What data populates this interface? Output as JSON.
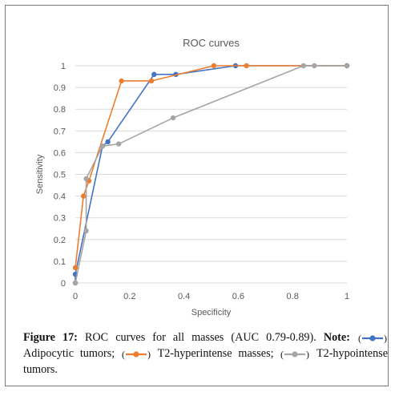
{
  "chart_data": {
    "type": "line",
    "title": "ROC curves",
    "xlabel": "Specificity",
    "ylabel": "Sensitivity",
    "xlim": [
      0,
      1
    ],
    "ylim": [
      0,
      1
    ],
    "x_ticks": [
      "0",
      "0.2",
      "0.4",
      "0.6",
      "0.8",
      "1"
    ],
    "y_ticks": [
      "0",
      "0.1",
      "0.2",
      "0.3",
      "0.4",
      "0.5",
      "0.6",
      "0.7",
      "0.8",
      "0.9",
      "1"
    ],
    "grid": "horizontal",
    "series": [
      {
        "color": "#4472c4",
        "points": [
          [
            0,
            0
          ],
          [
            0,
            0.04
          ],
          [
            0.1,
            0.63
          ],
          [
            0.12,
            0.65
          ],
          [
            0.29,
            0.96
          ],
          [
            0.37,
            0.96
          ],
          [
            0.59,
            1
          ],
          [
            1,
            1
          ]
        ]
      },
      {
        "color": "#ed7d31",
        "points": [
          [
            0,
            0.07
          ],
          [
            0.03,
            0.4
          ],
          [
            0.05,
            0.47
          ],
          [
            0.17,
            0.93
          ],
          [
            0.28,
            0.93
          ],
          [
            0.51,
            1
          ],
          [
            0.63,
            1
          ],
          [
            1,
            1
          ]
        ]
      },
      {
        "color": "#a5a5a5",
        "points": [
          [
            0,
            0
          ],
          [
            0.04,
            0.24
          ],
          [
            0.04,
            0.48
          ],
          [
            0.1,
            0.63
          ],
          [
            0.16,
            0.64
          ],
          [
            0.36,
            0.76
          ],
          [
            0.84,
            1
          ],
          [
            0.88,
            1
          ],
          [
            1,
            1
          ]
        ]
      }
    ]
  },
  "caption": {
    "figure_label": "Figure 17:",
    "text": " ROC curves for all masses (AUC 0.79-0.89). ",
    "note_label": "Note:",
    "item1": " Adipocytic tumors; ",
    "item2": " T2-hyperintense masses; ",
    "item3": " T2-hypointense tumors."
  }
}
